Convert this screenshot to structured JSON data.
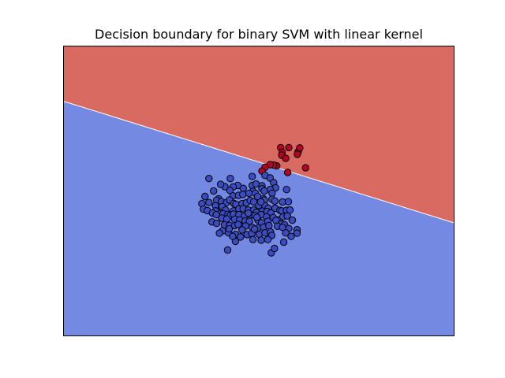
{
  "chart_data": {
    "type": "scatter",
    "title": "Decision boundary for binary SVM with linear kernel",
    "xlabel": "",
    "ylabel": "",
    "xlim": [
      0,
      100
    ],
    "ylim": [
      0,
      100
    ],
    "axis_ticks": false,
    "grid": false,
    "legend": false,
    "decision_boundary": {
      "line": [
        [
          0,
          81
        ],
        [
          100,
          39
        ]
      ],
      "region_above_color": "#d96a62",
      "region_below_color": "#7489e1",
      "boundary_color": "#ffffff"
    },
    "series": [
      {
        "class": 1,
        "color": "#b40426",
        "points": [
          [
            55.6,
            65.0
          ],
          [
            57.7,
            65.0
          ],
          [
            60.1,
            63.6
          ],
          [
            60.5,
            64.9
          ],
          [
            56.0,
            63.4
          ],
          [
            55.9,
            62.4
          ],
          [
            59.9,
            62.7
          ],
          [
            56.9,
            61.3
          ],
          [
            54.6,
            58.7
          ],
          [
            53.8,
            59.0
          ],
          [
            52.9,
            59.1
          ],
          [
            51.6,
            58.2
          ],
          [
            50.8,
            56.9
          ],
          [
            62.0,
            58.0
          ],
          [
            57.4,
            56.4
          ]
        ]
      },
      {
        "class": 0,
        "color": "#3b4cc0",
        "points": [
          [
            37.2,
            54.3
          ],
          [
            42.7,
            54.3
          ],
          [
            48.3,
            55.0
          ],
          [
            51.6,
            55.4
          ],
          [
            52.9,
            54.5
          ],
          [
            53.8,
            52.9
          ],
          [
            54.3,
            51.1
          ],
          [
            57.1,
            50.5
          ],
          [
            48.3,
            51.9
          ],
          [
            49.3,
            52.4
          ],
          [
            50.8,
            51.8
          ],
          [
            50.8,
            50.8
          ],
          [
            52.9,
            50.5
          ],
          [
            51.4,
            50.0
          ],
          [
            53.4,
            49.2
          ],
          [
            48.5,
            49.9
          ],
          [
            46.0,
            50.9
          ],
          [
            44.6,
            51.9
          ],
          [
            43.4,
            51.4
          ],
          [
            42.6,
            50.2
          ],
          [
            41.3,
            51.5
          ],
          [
            40.2,
            52.3
          ],
          [
            38.4,
            50.0
          ],
          [
            36.2,
            48.1
          ],
          [
            43.4,
            48.3
          ],
          [
            44.8,
            48.5
          ],
          [
            45.9,
            48.8
          ],
          [
            47.5,
            49.2
          ],
          [
            49.1,
            49.2
          ],
          [
            49.7,
            48.1
          ],
          [
            51.2,
            47.3
          ],
          [
            51.4,
            46.8
          ],
          [
            53.4,
            47.1
          ],
          [
            54.1,
            46.5
          ],
          [
            56.1,
            46.2
          ],
          [
            57.6,
            46.3
          ],
          [
            39.7,
            47.3
          ],
          [
            39.2,
            46.8
          ],
          [
            40.4,
            46.3
          ],
          [
            41.7,
            46.0
          ],
          [
            42.5,
            46.9
          ],
          [
            43.6,
            45.7
          ],
          [
            44.1,
            45.4
          ],
          [
            45.7,
            45.6
          ],
          [
            46.8,
            45.9
          ],
          [
            47.8,
            46.7
          ],
          [
            48.7,
            46.2
          ],
          [
            50.0,
            45.0
          ],
          [
            51.6,
            44.9
          ],
          [
            52.4,
            44.0
          ],
          [
            54.2,
            44.0
          ],
          [
            55.4,
            43.3
          ],
          [
            35.4,
            45.6
          ],
          [
            37.2,
            46.0
          ],
          [
            38.9,
            44.9
          ],
          [
            40.4,
            44.2
          ],
          [
            40.6,
            44.6
          ],
          [
            41.5,
            43.4
          ],
          [
            43.5,
            43.1
          ],
          [
            44.9,
            43.8
          ],
          [
            46.0,
            43.9
          ],
          [
            47.3,
            43.4
          ],
          [
            48.7,
            43.4
          ],
          [
            49.4,
            42.6
          ],
          [
            50.9,
            43.0
          ],
          [
            52.1,
            42.9
          ],
          [
            53.1,
            42.4
          ],
          [
            55.9,
            43.1
          ],
          [
            57.1,
            43.3
          ],
          [
            58.0,
            43.4
          ],
          [
            35.8,
            43.7
          ],
          [
            38.9,
            43.1
          ],
          [
            40.8,
            42.1
          ],
          [
            42.1,
            41.9
          ],
          [
            42.7,
            41.5
          ],
          [
            43.5,
            42.0
          ],
          [
            44.9,
            41.8
          ],
          [
            46.3,
            41.3
          ],
          [
            47.9,
            41.8
          ],
          [
            49.0,
            41.5
          ],
          [
            50.6,
            41.8
          ],
          [
            52.0,
            41.0
          ],
          [
            53.7,
            40.8
          ],
          [
            54.9,
            40.0
          ],
          [
            56.2,
            41.1
          ],
          [
            57.3,
            41.4
          ],
          [
            58.6,
            39.9
          ],
          [
            36.8,
            43.2
          ],
          [
            38.1,
            42.4
          ],
          [
            39.1,
            41.8
          ],
          [
            40.5,
            40.6
          ],
          [
            41.8,
            40.3
          ],
          [
            43.8,
            40.2
          ],
          [
            45.1,
            40.0
          ],
          [
            46.5,
            39.6
          ],
          [
            47.6,
            39.5
          ],
          [
            49.8,
            39.9
          ],
          [
            50.7,
            39.0
          ],
          [
            52.3,
            39.5
          ],
          [
            54.4,
            39.8
          ],
          [
            55.8,
            38.6
          ],
          [
            56.6,
            38.3
          ],
          [
            38.0,
            39.3
          ],
          [
            39.2,
            38.8
          ],
          [
            41.2,
            38.3
          ],
          [
            42.5,
            38.1
          ],
          [
            43.8,
            38.0
          ],
          [
            45.6,
            37.6
          ],
          [
            46.6,
            37.9
          ],
          [
            48.3,
            37.4
          ],
          [
            49.8,
            37.2
          ],
          [
            51.2,
            37.5
          ],
          [
            52.6,
            38.0
          ],
          [
            54.8,
            37.8
          ],
          [
            56.1,
            37.4
          ],
          [
            57.7,
            37.0
          ],
          [
            59.8,
            36.6
          ],
          [
            59.8,
            35.4
          ],
          [
            40.7,
            36.2
          ],
          [
            42.2,
            35.5
          ],
          [
            44.0,
            35.0
          ],
          [
            45.3,
            34.1
          ],
          [
            47.0,
            34.9
          ],
          [
            48.2,
            35.2
          ],
          [
            50.1,
            35.0
          ],
          [
            51.6,
            35.5
          ],
          [
            53.0,
            35.8
          ],
          [
            44.0,
            32.6
          ],
          [
            48.5,
            33.2
          ],
          [
            50.6,
            33.0
          ],
          [
            53.3,
            34.6
          ],
          [
            56.9,
            35.5
          ],
          [
            58.3,
            34.3
          ],
          [
            42.4,
            36.9
          ],
          [
            45.7,
            36.5
          ],
          [
            39.9,
            35.4
          ],
          [
            43.3,
            34.3
          ],
          [
            48.9,
            36.8
          ],
          [
            52.3,
            33.2
          ],
          [
            42.0,
            29.6
          ],
          [
            53.2,
            28.6
          ],
          [
            54.0,
            30.1
          ],
          [
            56.4,
            32.3
          ],
          [
            49.5,
            40.9
          ],
          [
            44.7,
            38.4
          ],
          [
            50.5,
            46.2
          ],
          [
            47.3,
            42.3
          ]
        ]
      }
    ]
  }
}
